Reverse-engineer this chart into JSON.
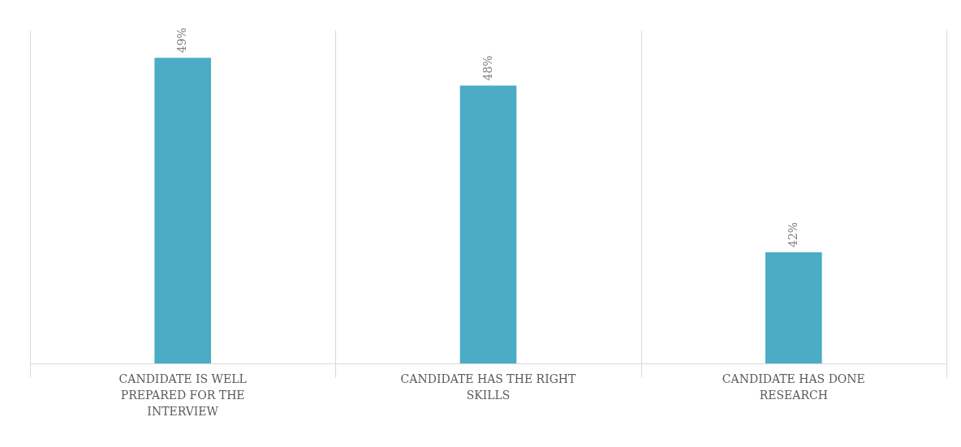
{
  "chart_data": {
    "type": "bar",
    "categories": [
      "CANDIDATE IS WELL PREPARED FOR THE INTERVIEW",
      "CANDIDATE HAS THE RIGHT SKILLS",
      "CANDIDATE HAS DONE RESEARCH"
    ],
    "values": [
      49,
      48,
      42
    ],
    "value_labels": [
      "49%",
      "48%",
      "42%"
    ],
    "color": "#4bacc6",
    "ylim": [
      38,
      50
    ],
    "grid": "x",
    "tick_labels": "x"
  }
}
